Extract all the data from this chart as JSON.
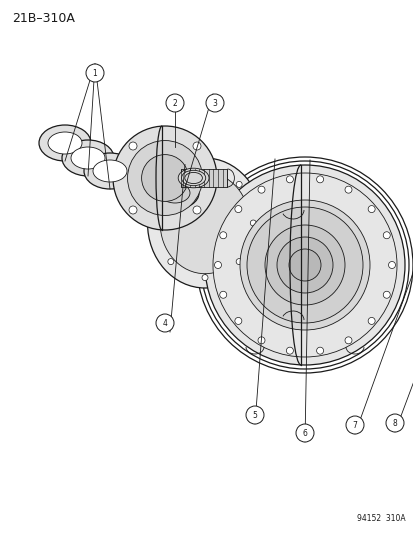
{
  "title_text": "21B–310A",
  "footer_text": "94152  310A",
  "background_color": "#ffffff",
  "line_color": "#1a1a1a",
  "fig_width": 4.14,
  "fig_height": 5.33,
  "dpi": 100
}
